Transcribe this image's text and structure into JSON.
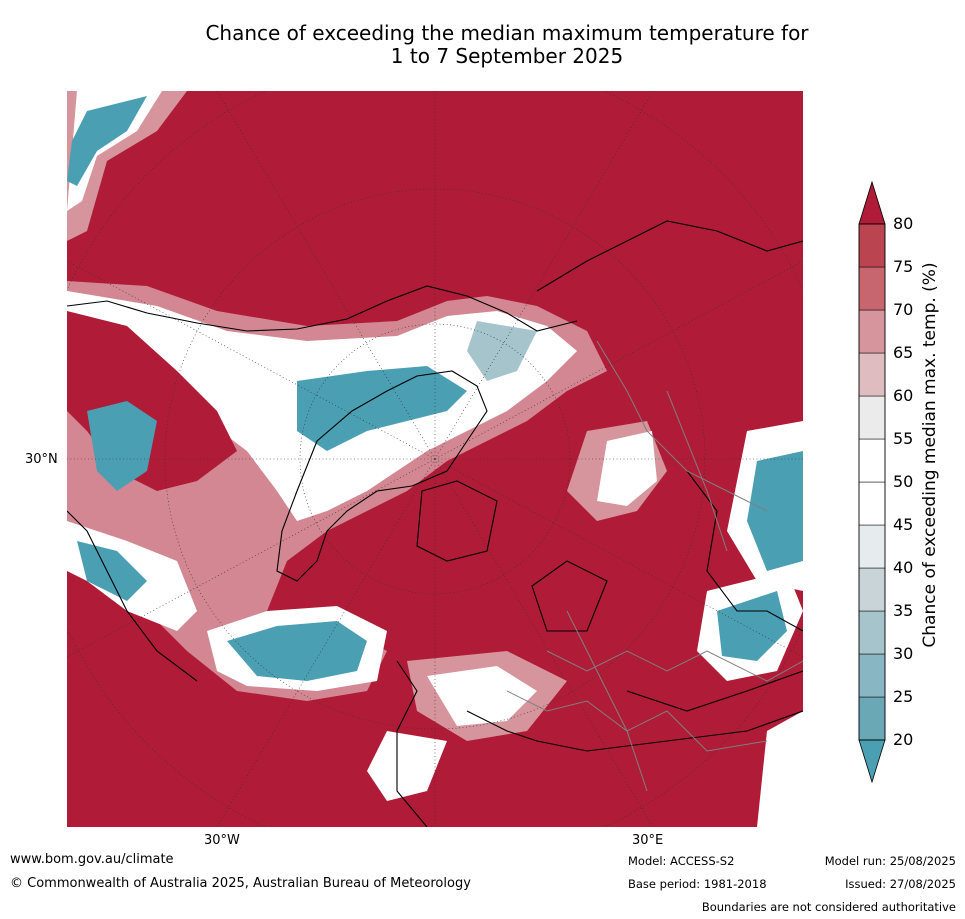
{
  "title_line1": "Chance of exceeding the median maximum temperature for",
  "title_line2": "1 to 7 September 2025",
  "map": {
    "lat_label": "30°N",
    "lon_label_west": "30°W",
    "lon_label_east": "30°E"
  },
  "colorbar": {
    "label": "Chance of exceeding median max. temp. (%)",
    "ticks": [
      "20",
      "25",
      "30",
      "35",
      "40",
      "45",
      "50",
      "55",
      "60",
      "65",
      "70",
      "75",
      "80"
    ],
    "colors": [
      "#6aa8b6",
      "#88b6c2",
      "#a5c4cb",
      "#c8d4d7",
      "#e6ecee",
      "#ffffff",
      "#ffffff",
      "#ebebeb",
      "#dfbcc0",
      "#d6949c",
      "#c7666f",
      "#bb4451"
    ],
    "under_color": "#4a9fb3",
    "over_color": "#b01c37"
  },
  "footer": {
    "website": "www.bom.gov.au/climate",
    "copyright": "© Commonwealth of Australia 2025, Australian Bureau of Meteorology",
    "model": "Model: ACCESS-S2",
    "base_period": "Base period: 1981-2018",
    "model_run": "Model run: 25/08/2025",
    "issued": "Issued: 27/08/2025",
    "disclaimer": "Boundaries are not considered authoritative"
  }
}
